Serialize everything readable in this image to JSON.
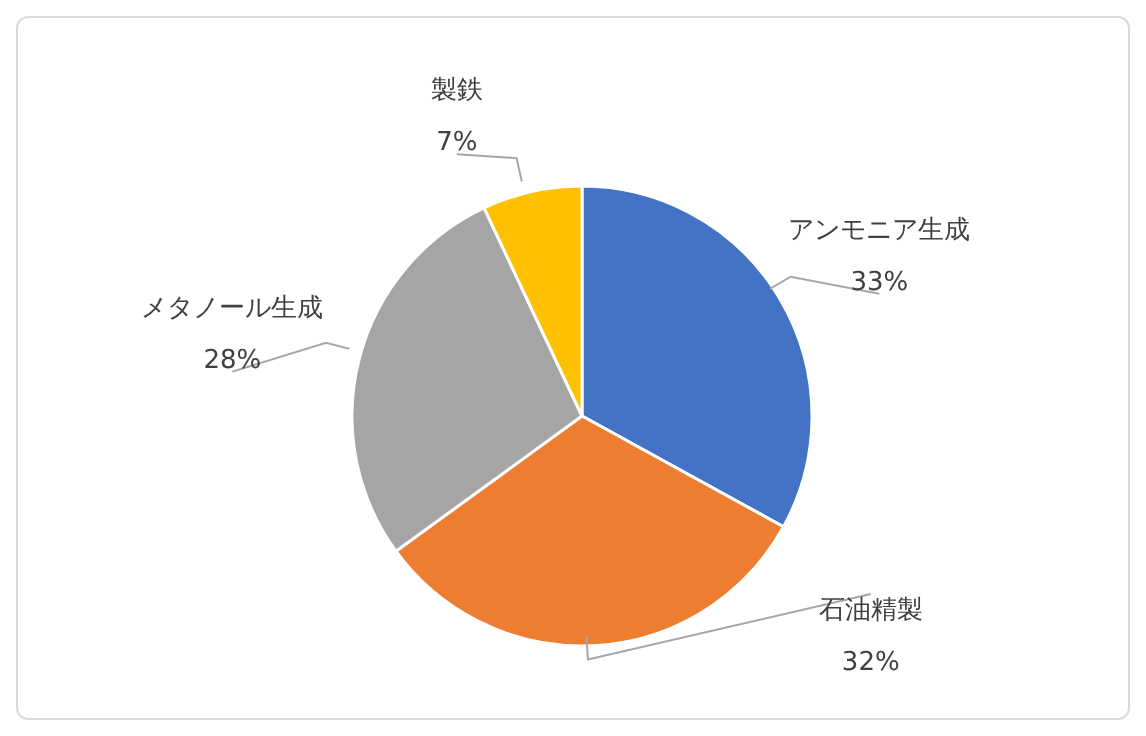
{
  "chart_data": {
    "type": "pie",
    "categories": [
      "アンモニア生成",
      "石油精製",
      "メタノール生成",
      "製鉄"
    ],
    "values": [
      33,
      32,
      28,
      7
    ],
    "colors": [
      "#4472c4",
      "#ed7d31",
      "#a5a5a5",
      "#ffc000"
    ],
    "value_labels": [
      "33%",
      "32%",
      "28%",
      "7%"
    ],
    "legend": false
  }
}
